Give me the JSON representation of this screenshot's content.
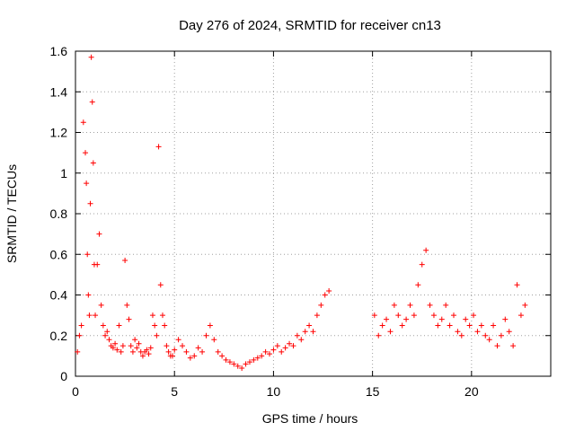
{
  "chart_data": {
    "type": "scatter",
    "title": "Day 276 of 2024, SRMTID for receiver cn13",
    "xlabel": "GPS time / hours",
    "ylabel": "SRMTID / TECUs",
    "xlim": [
      0,
      24
    ],
    "ylim": [
      0,
      1.6
    ],
    "xticks": [
      0,
      5,
      10,
      15,
      20
    ],
    "yticks": [
      0,
      0.2,
      0.4,
      0.6,
      0.8,
      1,
      1.2,
      1.4,
      1.6
    ],
    "xtick_labels": [
      "0",
      "5",
      "10",
      "15",
      "20"
    ],
    "ytick_labels": [
      "0",
      "0.2",
      "0.4",
      "0.6",
      "0.8",
      "1",
      "1.2",
      "1.4",
      "1.6"
    ],
    "grid": true,
    "marker": "+",
    "color": "#ff0000",
    "gap_hours": [
      13.0,
      15.1
    ],
    "series": [
      {
        "name": "SRMTID",
        "x": [
          0.1,
          0.2,
          0.3,
          0.4,
          0.5,
          0.55,
          0.6,
          0.65,
          0.7,
          0.75,
          0.8,
          0.85,
          0.9,
          0.95,
          1.0,
          1.1,
          1.2,
          1.3,
          1.4,
          1.5,
          1.6,
          1.7,
          1.8,
          1.9,
          2.0,
          2.1,
          2.2,
          2.3,
          2.4,
          2.5,
          2.6,
          2.7,
          2.8,
          2.9,
          3.0,
          3.1,
          3.2,
          3.3,
          3.4,
          3.5,
          3.6,
          3.7,
          3.8,
          3.9,
          4.0,
          4.1,
          4.2,
          4.3,
          4.4,
          4.5,
          4.6,
          4.7,
          4.8,
          4.9,
          5.0,
          5.2,
          5.4,
          5.6,
          5.8,
          6.0,
          6.2,
          6.4,
          6.6,
          6.8,
          7.0,
          7.2,
          7.4,
          7.6,
          7.8,
          8.0,
          8.2,
          8.4,
          8.6,
          8.8,
          9.0,
          9.2,
          9.4,
          9.6,
          9.8,
          10.0,
          10.2,
          10.4,
          10.6,
          10.8,
          11.0,
          11.2,
          11.4,
          11.6,
          11.8,
          12.0,
          12.2,
          12.4,
          12.6,
          12.8,
          15.1,
          15.3,
          15.5,
          15.7,
          15.9,
          16.1,
          16.3,
          16.5,
          16.7,
          16.9,
          17.1,
          17.3,
          17.5,
          17.7,
          17.9,
          18.1,
          18.3,
          18.5,
          18.7,
          18.9,
          19.1,
          19.3,
          19.5,
          19.7,
          19.9,
          20.1,
          20.3,
          20.5,
          20.7,
          20.9,
          21.1,
          21.3,
          21.5,
          21.7,
          21.9,
          22.1,
          22.3,
          22.5,
          22.7
        ],
        "values": [
          0.12,
          0.2,
          0.25,
          1.25,
          1.1,
          0.95,
          0.6,
          0.4,
          0.3,
          0.85,
          1.57,
          1.35,
          1.05,
          0.55,
          0.3,
          0.55,
          0.7,
          0.35,
          0.25,
          0.2,
          0.22,
          0.18,
          0.15,
          0.14,
          0.16,
          0.13,
          0.25,
          0.12,
          0.15,
          0.57,
          0.35,
          0.28,
          0.15,
          0.12,
          0.18,
          0.14,
          0.16,
          0.12,
          0.1,
          0.12,
          0.13,
          0.11,
          0.14,
          0.3,
          0.25,
          0.2,
          1.13,
          0.45,
          0.3,
          0.25,
          0.15,
          0.12,
          0.1,
          0.1,
          0.13,
          0.18,
          0.15,
          0.12,
          0.09,
          0.1,
          0.14,
          0.12,
          0.2,
          0.25,
          0.18,
          0.12,
          0.1,
          0.08,
          0.07,
          0.06,
          0.05,
          0.04,
          0.06,
          0.07,
          0.08,
          0.09,
          0.1,
          0.12,
          0.11,
          0.13,
          0.15,
          0.12,
          0.14,
          0.16,
          0.15,
          0.2,
          0.18,
          0.22,
          0.25,
          0.22,
          0.3,
          0.35,
          0.4,
          0.42,
          0.3,
          0.2,
          0.25,
          0.28,
          0.22,
          0.35,
          0.3,
          0.25,
          0.28,
          0.35,
          0.3,
          0.45,
          0.55,
          0.62,
          0.35,
          0.3,
          0.25,
          0.28,
          0.35,
          0.25,
          0.3,
          0.22,
          0.2,
          0.28,
          0.25,
          0.3,
          0.22,
          0.25,
          0.2,
          0.18,
          0.25,
          0.15,
          0.2,
          0.28,
          0.22,
          0.15,
          0.45,
          0.3,
          0.35
        ]
      }
    ]
  }
}
